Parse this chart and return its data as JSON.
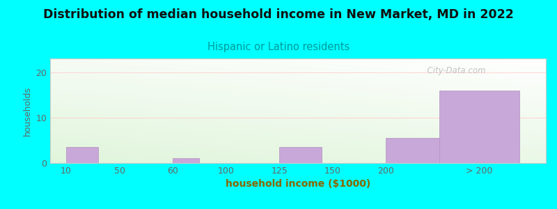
{
  "title": "Distribution of median household income in New Market, MD in 2022",
  "subtitle": "Hispanic or Latino residents",
  "xlabel": "household income ($1000)",
  "ylabel": "households",
  "background_color": "#00FFFF",
  "bar_color": "#c8a8d8",
  "bar_edge_color": "#b090c0",
  "title_fontsize": 12.5,
  "subtitle_fontsize": 10.5,
  "subtitle_color": "#009999",
  "axis_label_color": "#886600",
  "tick_label_color": "#666666",
  "ylabel_color": "#666666",
  "watermark": "  City-Data.com",
  "bar_lefts": [
    0,
    2,
    4,
    6,
    7
  ],
  "bar_heights": [
    3.5,
    1.0,
    3.5,
    5.5,
    16.0
  ],
  "bar_widths": [
    0.6,
    0.5,
    0.8,
    1.5,
    1.5
  ],
  "x_tick_positions": [
    0,
    1,
    2,
    3,
    4,
    5,
    6,
    7.75
  ],
  "x_tick_labels": [
    "10",
    "50",
    "60",
    "100",
    "125",
    "150",
    "200",
    "> 200"
  ],
  "ylim": [
    0,
    23
  ],
  "yticks": [
    0,
    10,
    20
  ],
  "xlim": [
    -0.3,
    9.0
  ]
}
